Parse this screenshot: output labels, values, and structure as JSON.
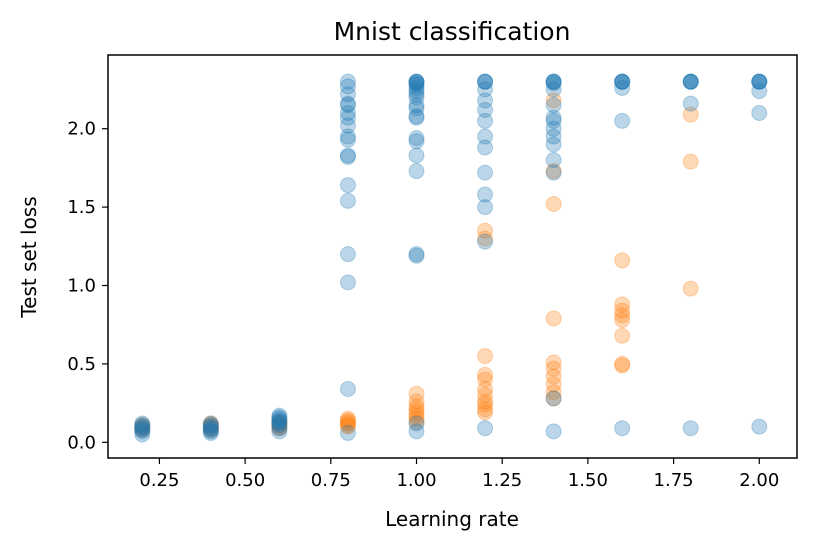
{
  "chart_data": {
    "type": "scatter",
    "title": "Mnist classification",
    "xlabel": "Learning rate",
    "ylabel": "Test set loss",
    "xlim": [
      0.1,
      2.11
    ],
    "ylim": [
      -0.1,
      2.47
    ],
    "xticks": [
      0.25,
      0.5,
      0.75,
      1.0,
      1.25,
      1.5,
      1.75,
      2.0
    ],
    "xtick_labels": [
      "0.25",
      "0.50",
      "0.75",
      "1.00",
      "1.25",
      "1.50",
      "1.75",
      "2.00"
    ],
    "yticks": [
      0.0,
      0.5,
      1.0,
      1.5,
      2.0
    ],
    "ytick_labels": [
      "0.0",
      "0.5",
      "1.0",
      "1.5",
      "2.0"
    ],
    "grid": false,
    "series": [
      {
        "name": "series-orange",
        "color": "#ff7f0e",
        "opacity": 0.3,
        "points": [
          [
            0.2,
            0.09
          ],
          [
            0.2,
            0.1
          ],
          [
            0.2,
            0.11
          ],
          [
            0.2,
            0.08
          ],
          [
            0.4,
            0.09
          ],
          [
            0.4,
            0.1
          ],
          [
            0.4,
            0.11
          ],
          [
            0.4,
            0.12
          ],
          [
            0.4,
            0.08
          ],
          [
            0.6,
            0.09
          ],
          [
            0.6,
            0.11
          ],
          [
            0.6,
            0.12
          ],
          [
            0.6,
            0.13
          ],
          [
            0.6,
            0.1
          ],
          [
            0.8,
            0.11
          ],
          [
            0.8,
            0.12
          ],
          [
            0.8,
            0.13
          ],
          [
            0.8,
            0.14
          ],
          [
            0.8,
            0.15
          ],
          [
            0.8,
            0.1
          ],
          [
            1.0,
            0.13
          ],
          [
            1.0,
            0.15
          ],
          [
            1.0,
            0.17
          ],
          [
            1.0,
            0.19
          ],
          [
            1.0,
            0.21
          ],
          [
            1.0,
            0.23
          ],
          [
            1.0,
            0.26
          ],
          [
            1.0,
            0.31
          ],
          [
            1.2,
            0.19
          ],
          [
            1.2,
            0.21
          ],
          [
            1.2,
            0.24
          ],
          [
            1.2,
            0.26
          ],
          [
            1.2,
            0.3
          ],
          [
            1.2,
            0.34
          ],
          [
            1.2,
            0.4
          ],
          [
            1.2,
            0.43
          ],
          [
            1.2,
            0.55
          ],
          [
            1.2,
            1.3
          ],
          [
            1.2,
            1.35
          ],
          [
            1.4,
            0.28
          ],
          [
            1.4,
            0.32
          ],
          [
            1.4,
            0.37
          ],
          [
            1.4,
            0.42
          ],
          [
            1.4,
            0.47
          ],
          [
            1.4,
            0.51
          ],
          [
            1.4,
            0.79
          ],
          [
            1.4,
            1.52
          ],
          [
            1.4,
            1.73
          ],
          [
            1.4,
            2.18
          ],
          [
            1.6,
            0.49
          ],
          [
            1.6,
            0.5
          ],
          [
            1.6,
            0.68
          ],
          [
            1.6,
            0.78
          ],
          [
            1.6,
            0.81
          ],
          [
            1.6,
            0.84
          ],
          [
            1.6,
            0.88
          ],
          [
            1.6,
            1.16
          ],
          [
            1.8,
            0.98
          ],
          [
            1.8,
            1.79
          ],
          [
            1.8,
            2.09
          ]
        ]
      },
      {
        "name": "series-blue",
        "color": "#1f77b4",
        "opacity": 0.3,
        "points": [
          [
            0.2,
            0.05
          ],
          [
            0.2,
            0.07
          ],
          [
            0.2,
            0.08
          ],
          [
            0.2,
            0.09
          ],
          [
            0.2,
            0.1
          ],
          [
            0.2,
            0.11
          ],
          [
            0.2,
            0.12
          ],
          [
            0.4,
            0.06
          ],
          [
            0.4,
            0.07
          ],
          [
            0.4,
            0.08
          ],
          [
            0.4,
            0.09
          ],
          [
            0.4,
            0.1
          ],
          [
            0.4,
            0.11
          ],
          [
            0.4,
            0.12
          ],
          [
            0.6,
            0.07
          ],
          [
            0.6,
            0.09
          ],
          [
            0.6,
            0.11
          ],
          [
            0.6,
            0.12
          ],
          [
            0.6,
            0.13
          ],
          [
            0.6,
            0.14
          ],
          [
            0.6,
            0.15
          ],
          [
            0.6,
            0.16
          ],
          [
            0.6,
            0.17
          ],
          [
            0.8,
            0.06
          ],
          [
            0.8,
            0.34
          ],
          [
            0.8,
            1.02
          ],
          [
            0.8,
            1.2
          ],
          [
            0.8,
            1.54
          ],
          [
            0.8,
            1.64
          ],
          [
            0.8,
            1.82
          ],
          [
            0.8,
            1.83
          ],
          [
            0.8,
            1.93
          ],
          [
            0.8,
            1.95
          ],
          [
            0.8,
            2.02
          ],
          [
            0.8,
            2.07
          ],
          [
            0.8,
            2.1
          ],
          [
            0.8,
            2.15
          ],
          [
            0.8,
            2.16
          ],
          [
            0.8,
            2.22
          ],
          [
            0.8,
            2.27
          ],
          [
            0.8,
            2.3
          ],
          [
            1.0,
            0.07
          ],
          [
            1.0,
            0.12
          ],
          [
            1.0,
            1.19
          ],
          [
            1.0,
            1.2
          ],
          [
            1.0,
            1.73
          ],
          [
            1.0,
            1.83
          ],
          [
            1.0,
            1.92
          ],
          [
            1.0,
            1.94
          ],
          [
            1.0,
            2.07
          ],
          [
            1.0,
            2.08
          ],
          [
            1.0,
            2.13
          ],
          [
            1.0,
            2.15
          ],
          [
            1.0,
            2.2
          ],
          [
            1.0,
            2.22
          ],
          [
            1.0,
            2.24
          ],
          [
            1.0,
            2.26
          ],
          [
            1.0,
            2.28
          ],
          [
            1.0,
            2.29
          ],
          [
            1.0,
            2.3
          ],
          [
            1.0,
            2.3
          ],
          [
            1.0,
            2.3
          ],
          [
            1.2,
            0.09
          ],
          [
            1.2,
            1.28
          ],
          [
            1.2,
            1.5
          ],
          [
            1.2,
            1.58
          ],
          [
            1.2,
            1.72
          ],
          [
            1.2,
            1.88
          ],
          [
            1.2,
            1.95
          ],
          [
            1.2,
            2.05
          ],
          [
            1.2,
            2.12
          ],
          [
            1.2,
            2.18
          ],
          [
            1.2,
            2.25
          ],
          [
            1.2,
            2.3
          ],
          [
            1.2,
            2.3
          ],
          [
            1.2,
            2.3
          ],
          [
            1.4,
            0.07
          ],
          [
            1.4,
            0.28
          ],
          [
            1.4,
            1.72
          ],
          [
            1.4,
            1.8
          ],
          [
            1.4,
            1.9
          ],
          [
            1.4,
            1.95
          ],
          [
            1.4,
            2.0
          ],
          [
            1.4,
            2.05
          ],
          [
            1.4,
            2.07
          ],
          [
            1.4,
            2.15
          ],
          [
            1.4,
            2.25
          ],
          [
            1.4,
            2.29
          ],
          [
            1.4,
            2.3
          ],
          [
            1.4,
            2.3
          ],
          [
            1.4,
            2.3
          ],
          [
            1.6,
            0.09
          ],
          [
            1.6,
            2.05
          ],
          [
            1.6,
            2.26
          ],
          [
            1.6,
            2.3
          ],
          [
            1.6,
            2.3
          ],
          [
            1.6,
            2.3
          ],
          [
            1.6,
            2.3
          ],
          [
            1.8,
            0.09
          ],
          [
            1.8,
            2.16
          ],
          [
            1.8,
            2.3
          ],
          [
            1.8,
            2.3
          ],
          [
            1.8,
            2.3
          ],
          [
            1.8,
            2.3
          ],
          [
            2.0,
            0.1
          ],
          [
            2.0,
            2.1
          ],
          [
            2.0,
            2.24
          ],
          [
            2.0,
            2.3
          ],
          [
            2.0,
            2.3
          ],
          [
            2.0,
            2.3
          ],
          [
            2.0,
            2.3
          ]
        ]
      }
    ]
  }
}
